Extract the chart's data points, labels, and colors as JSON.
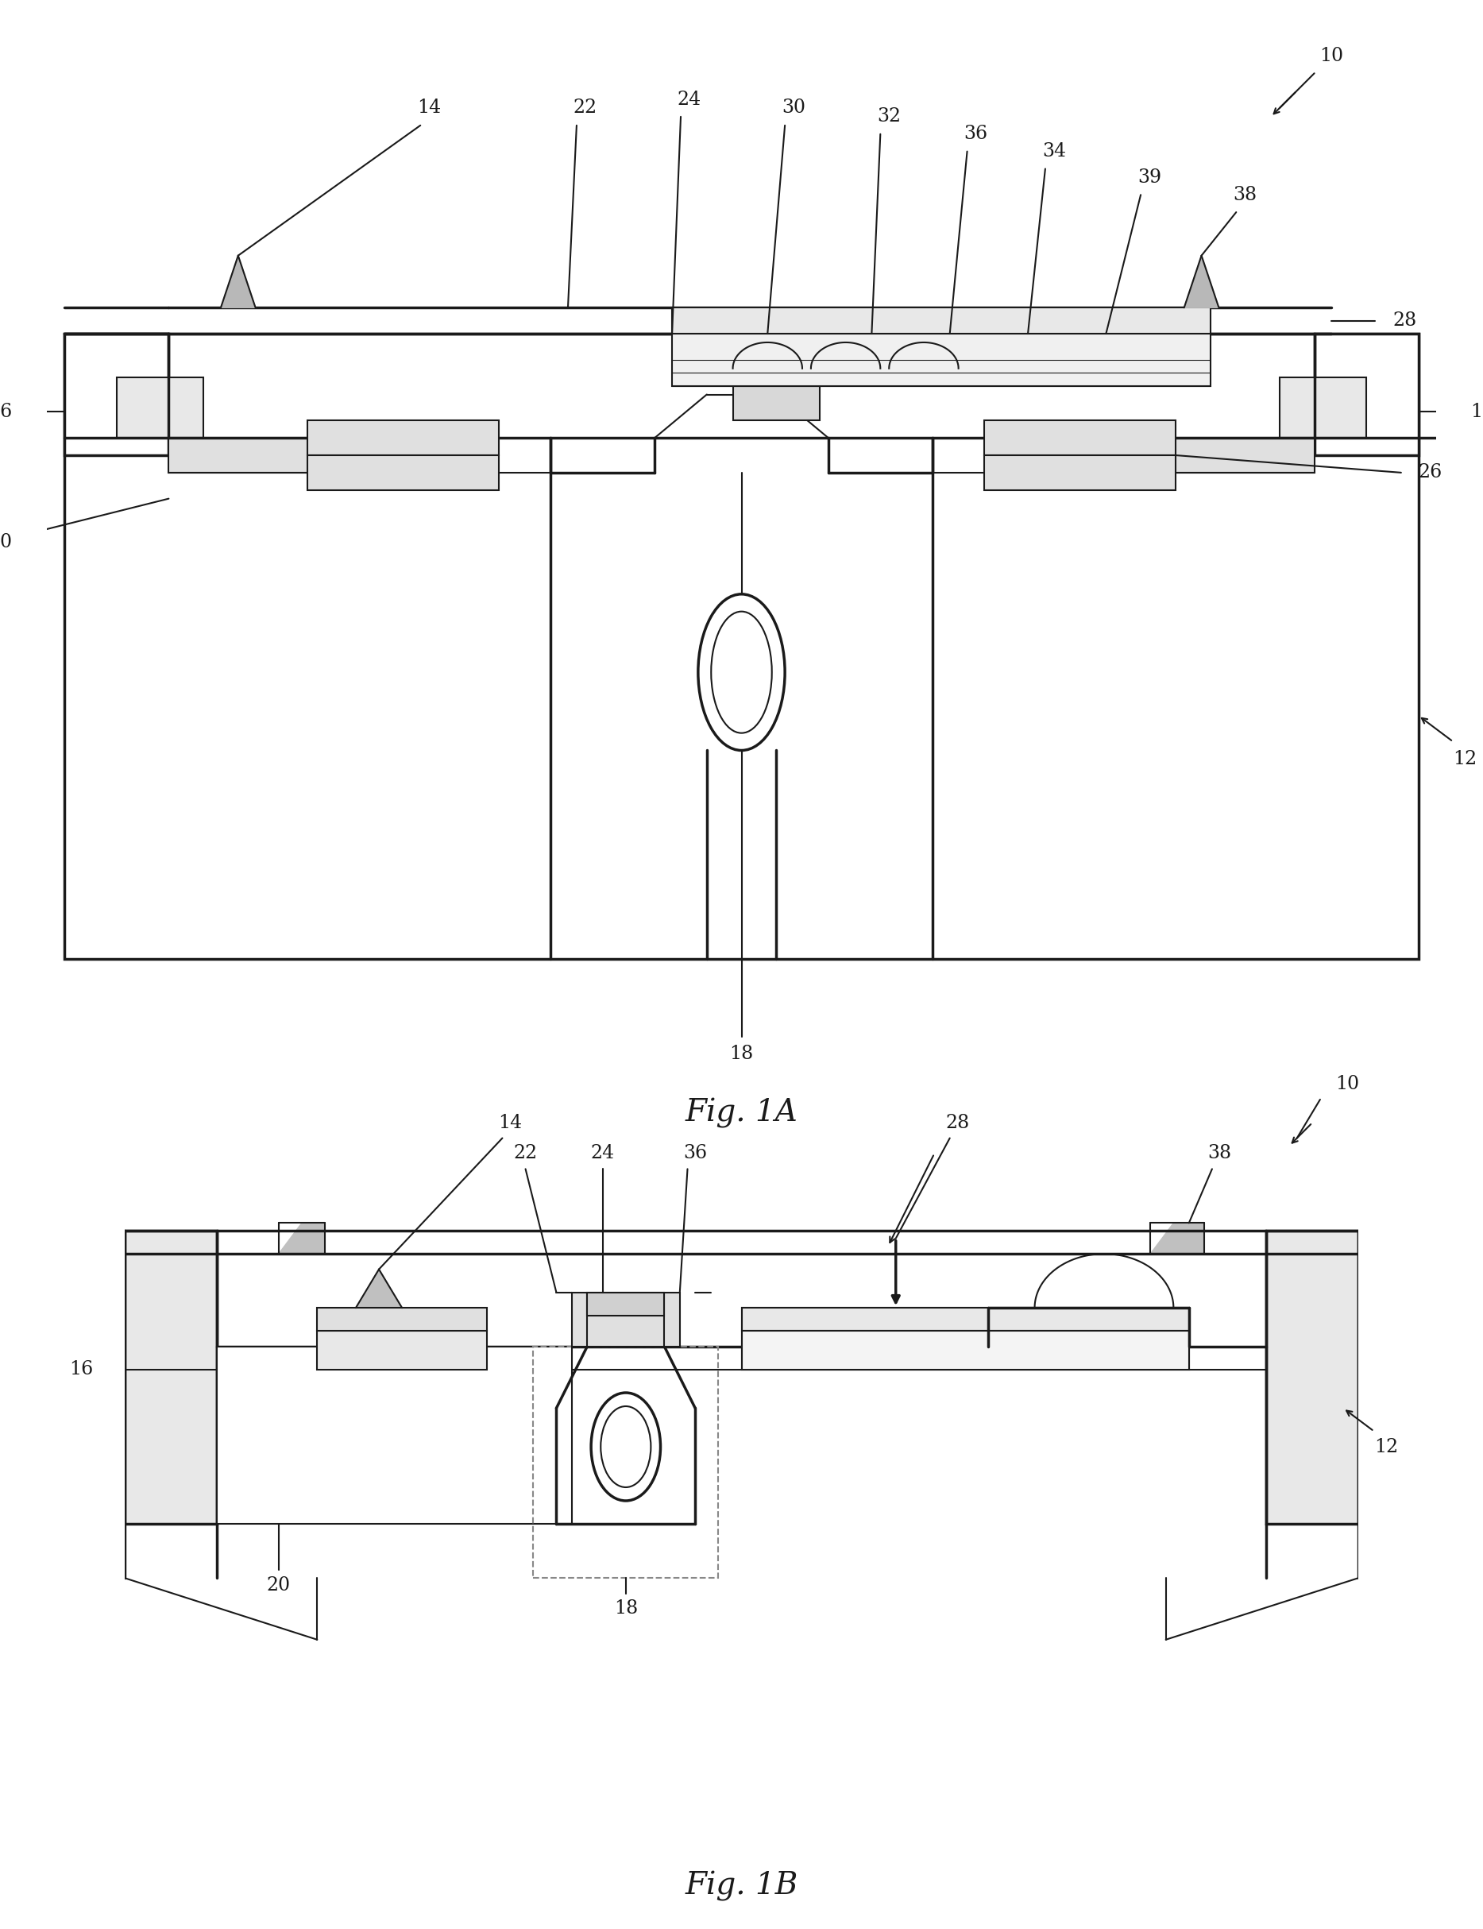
{
  "fig_title_A": "Fig. 1A",
  "fig_title_B": "Fig. 1B",
  "background_color": "#ffffff",
  "line_color": "#1a1a1a",
  "lw_thin": 1.5,
  "lw_thick": 2.5,
  "label_fontsize": 17,
  "title_fontsize": 28
}
